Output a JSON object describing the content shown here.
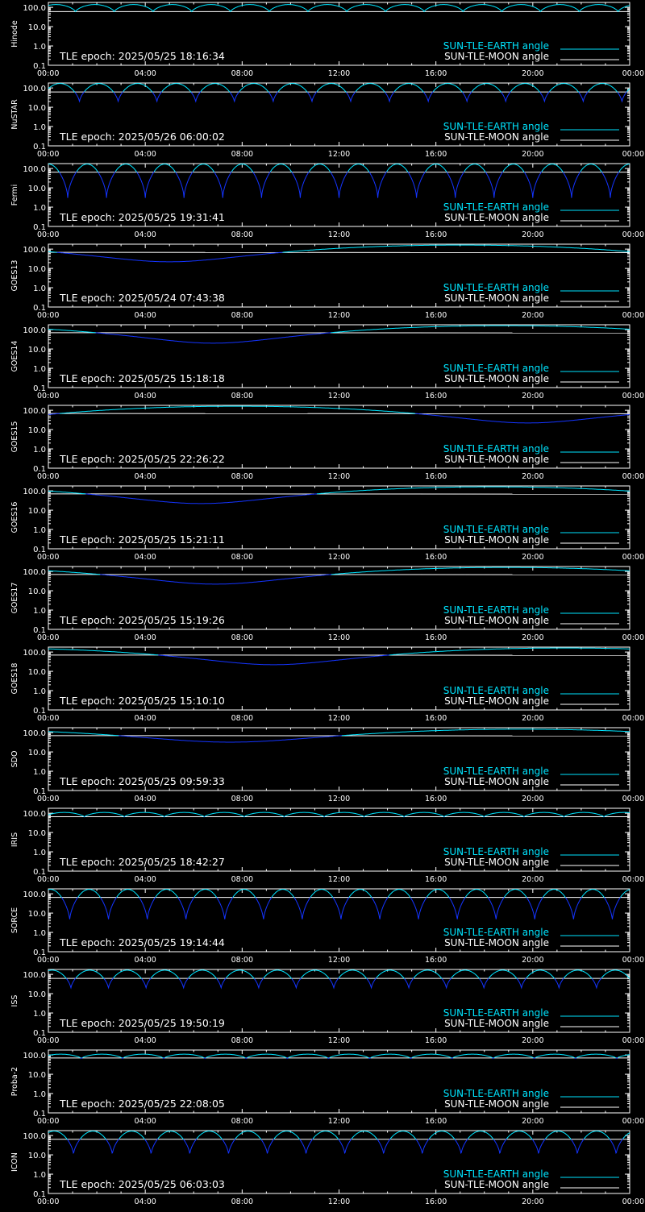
{
  "colors": {
    "background": "#000000",
    "axes": "#ffffff",
    "earth": "#00e5ff",
    "moon": "#ffffff",
    "below": "#1434ff"
  },
  "legend": {
    "earth": "SUN-TLE-EARTH angle",
    "moon": "SUN-TLE-MOON angle"
  },
  "chart_data": [
    {
      "type": "line",
      "panel_label": "Hinode",
      "tle_epoch": "TLE epoch: 2025/05/25 18:16:34",
      "x_ticks": [
        "00:00",
        "04:00",
        "08:00",
        "12:00",
        "16:00",
        "20:00",
        "00:00"
      ],
      "x_range_hours": [
        0,
        24
      ],
      "y_ticks": [
        "100.0",
        "10.0",
        "1.0",
        "0.1"
      ],
      "yscale": "log",
      "ylim": [
        0.1,
        180
      ],
      "earth_angle": {
        "model": "orbit",
        "max": 140,
        "min": 58,
        "period_hours": 1.6,
        "phase": 0.3
      },
      "moon_angle": [
        [
          0,
          60
        ],
        [
          24,
          60
        ]
      ]
    },
    {
      "type": "line",
      "panel_label": "NuSTAR",
      "tle_epoch": "TLE epoch: 2025/05/26 06:00:02",
      "x_ticks": [
        "00:00",
        "04:00",
        "08:00",
        "12:00",
        "16:00",
        "20:00",
        "00:00"
      ],
      "x_range_hours": [
        0,
        24
      ],
      "y_ticks": [
        "100.0",
        "10.0",
        "1.0",
        "0.1"
      ],
      "yscale": "log",
      "ylim": [
        0.1,
        180
      ],
      "earth_angle": {
        "model": "orbit",
        "max": 170,
        "min": 18,
        "period_hours": 1.6,
        "phase": 0.2
      },
      "moon_angle": [
        [
          0,
          62
        ],
        [
          24,
          62
        ]
      ]
    },
    {
      "type": "line",
      "panel_label": "Fermi",
      "tle_epoch": "TLE epoch: 2025/05/25 19:31:41",
      "x_ticks": [
        "00:00",
        "04:00",
        "08:00",
        "12:00",
        "16:00",
        "20:00",
        "00:00"
      ],
      "x_range_hours": [
        0,
        24
      ],
      "y_ticks": [
        "100.0",
        "10.0",
        "1.0",
        "0.1"
      ],
      "yscale": "log",
      "ylim": [
        0.1,
        180
      ],
      "earth_angle": {
        "model": "orbit",
        "max": 170,
        "min": 3,
        "period_hours": 1.6,
        "phase": 0.5
      },
      "moon_angle": [
        [
          0,
          65
        ],
        [
          24,
          65
        ]
      ]
    },
    {
      "type": "line",
      "panel_label": "GOES13",
      "tle_epoch": "TLE epoch: 2025/05/24 07:43:38",
      "x_ticks": [
        "00:00",
        "04:00",
        "08:00",
        "12:00",
        "16:00",
        "20:00",
        "00:00"
      ],
      "x_range_hours": [
        0,
        24
      ],
      "y_ticks": [
        "100.0",
        "10.0",
        "1.0",
        "0.1"
      ],
      "yscale": "log",
      "ylim": [
        0.1,
        180
      ],
      "earth_angle": {
        "model": "geo",
        "max": 162,
        "min": 22,
        "min_hour": 5.0
      },
      "moon_angle": [
        [
          0,
          68
        ],
        [
          24,
          66
        ]
      ]
    },
    {
      "type": "line",
      "panel_label": "GOES14",
      "tle_epoch": "TLE epoch: 2025/05/25 15:18:18",
      "x_ticks": [
        "00:00",
        "04:00",
        "08:00",
        "12:00",
        "16:00",
        "20:00",
        "00:00"
      ],
      "x_range_hours": [
        0,
        24
      ],
      "y_ticks": [
        "100.0",
        "10.0",
        "1.0",
        "0.1"
      ],
      "yscale": "log",
      "ylim": [
        0.1,
        180
      ],
      "earth_angle": {
        "model": "geo",
        "max": 162,
        "min": 20,
        "min_hour": 6.8
      },
      "moon_angle": [
        [
          0,
          70
        ],
        [
          24,
          68
        ]
      ]
    },
    {
      "type": "line",
      "panel_label": "GOES15",
      "tle_epoch": "TLE epoch: 2025/05/25 22:26:22",
      "x_ticks": [
        "00:00",
        "04:00",
        "08:00",
        "12:00",
        "16:00",
        "20:00",
        "00:00"
      ],
      "x_range_hours": [
        0,
        24
      ],
      "y_ticks": [
        "100.0",
        "10.0",
        "1.0",
        "0.1"
      ],
      "yscale": "log",
      "ylim": [
        0.1,
        180
      ],
      "earth_angle": {
        "model": "geo",
        "max": 162,
        "min": 22,
        "min_hour": 19.8
      },
      "moon_angle": [
        [
          0,
          68
        ],
        [
          24,
          66
        ]
      ]
    },
    {
      "type": "line",
      "panel_label": "GOES16",
      "tle_epoch": "TLE epoch: 2025/05/25 15:21:11",
      "x_ticks": [
        "00:00",
        "04:00",
        "08:00",
        "12:00",
        "16:00",
        "20:00",
        "00:00"
      ],
      "x_range_hours": [
        0,
        24
      ],
      "y_ticks": [
        "100.0",
        "10.0",
        "1.0",
        "0.1"
      ],
      "yscale": "log",
      "ylim": [
        0.1,
        180
      ],
      "earth_angle": {
        "model": "geo",
        "max": 162,
        "min": 22,
        "min_hour": 6.3
      },
      "moon_angle": [
        [
          0,
          70
        ],
        [
          24,
          68
        ]
      ]
    },
    {
      "type": "line",
      "panel_label": "GOES17",
      "tle_epoch": "TLE epoch: 2025/05/25 15:19:26",
      "x_ticks": [
        "00:00",
        "04:00",
        "08:00",
        "12:00",
        "16:00",
        "20:00",
        "00:00"
      ],
      "x_range_hours": [
        0,
        24
      ],
      "y_ticks": [
        "100.0",
        "10.0",
        "1.0",
        "0.1"
      ],
      "yscale": "log",
      "ylim": [
        0.1,
        180
      ],
      "earth_angle": {
        "model": "geo",
        "max": 162,
        "min": 22,
        "min_hour": 6.9
      },
      "moon_angle": [
        [
          0,
          70
        ],
        [
          24,
          68
        ]
      ]
    },
    {
      "type": "line",
      "panel_label": "GOES18",
      "tle_epoch": "TLE epoch: 2025/05/25 15:10:10",
      "x_ticks": [
        "00:00",
        "04:00",
        "08:00",
        "12:00",
        "16:00",
        "20:00",
        "00:00"
      ],
      "x_range_hours": [
        0,
        24
      ],
      "y_ticks": [
        "100.0",
        "10.0",
        "1.0",
        "0.1"
      ],
      "yscale": "log",
      "ylim": [
        0.1,
        180
      ],
      "earth_angle": {
        "model": "geo",
        "max": 162,
        "min": 22,
        "min_hour": 9.3
      },
      "moon_angle": [
        [
          0,
          70
        ],
        [
          24,
          68
        ]
      ]
    },
    {
      "type": "line",
      "panel_label": "SDO",
      "tle_epoch": "TLE epoch: 2025/05/25 09:59:33",
      "x_ticks": [
        "00:00",
        "04:00",
        "08:00",
        "12:00",
        "16:00",
        "20:00",
        "00:00"
      ],
      "x_range_hours": [
        0,
        24
      ],
      "y_ticks": [
        "100.0",
        "10.0",
        "1.0",
        "0.1"
      ],
      "yscale": "log",
      "ylim": [
        0.1,
        180
      ],
      "earth_angle": {
        "model": "geo",
        "max": 150,
        "min": 32,
        "min_hour": 7.5
      },
      "moon_angle": [
        [
          0,
          70
        ],
        [
          24,
          68
        ]
      ]
    },
    {
      "type": "line",
      "panel_label": "IRIS",
      "tle_epoch": "TLE epoch: 2025/05/25 18:42:27",
      "x_ticks": [
        "00:00",
        "04:00",
        "08:00",
        "12:00",
        "16:00",
        "20:00",
        "00:00"
      ],
      "x_range_hours": [
        0,
        24
      ],
      "y_ticks": [
        "100.0",
        "10.0",
        "1.0",
        "0.1"
      ],
      "yscale": "log",
      "ylim": [
        0.1,
        180
      ],
      "earth_angle": {
        "model": "orbit",
        "max": 110,
        "min": 62,
        "period_hours": 1.65,
        "phase": 0.1
      },
      "moon_angle": [
        [
          0,
          66
        ],
        [
          24,
          66
        ]
      ]
    },
    {
      "type": "line",
      "panel_label": "SORCE",
      "tle_epoch": "TLE epoch: 2025/05/25 19:14:44",
      "x_ticks": [
        "00:00",
        "04:00",
        "08:00",
        "12:00",
        "16:00",
        "20:00",
        "00:00"
      ],
      "x_range_hours": [
        0,
        24
      ],
      "y_ticks": [
        "100.0",
        "10.0",
        "1.0",
        "0.1"
      ],
      "yscale": "log",
      "ylim": [
        0.1,
        180
      ],
      "earth_angle": {
        "model": "orbit",
        "max": 170,
        "min": 4,
        "period_hours": 1.6,
        "phase": 0.45
      },
      "moon_angle": [
        [
          0,
          65
        ],
        [
          24,
          65
        ]
      ]
    },
    {
      "type": "line",
      "panel_label": "ISS",
      "tle_epoch": "TLE epoch: 2025/05/25 19:50:19",
      "x_ticks": [
        "00:00",
        "04:00",
        "08:00",
        "12:00",
        "16:00",
        "20:00",
        "00:00"
      ],
      "x_range_hours": [
        0,
        24
      ],
      "y_ticks": [
        "100.0",
        "10.0",
        "1.0",
        "0.1"
      ],
      "yscale": "log",
      "ylim": [
        0.1,
        180
      ],
      "earth_angle": {
        "model": "orbit",
        "max": 165,
        "min": 18,
        "period_hours": 1.55,
        "phase": 0.4
      },
      "moon_angle": [
        [
          0,
          62
        ],
        [
          24,
          62
        ]
      ]
    },
    {
      "type": "line",
      "panel_label": "Proba-2",
      "tle_epoch": "TLE epoch: 2025/05/25 22:08:05",
      "x_ticks": [
        "00:00",
        "04:00",
        "08:00",
        "12:00",
        "16:00",
        "20:00",
        "00:00"
      ],
      "x_range_hours": [
        0,
        24
      ],
      "y_ticks": [
        "100.0",
        "10.0",
        "1.0",
        "0.1"
      ],
      "yscale": "log",
      "ylim": [
        0.1,
        180
      ],
      "earth_angle": {
        "model": "orbit",
        "max": 110,
        "min": 64,
        "period_hours": 1.7,
        "phase": 0.2
      },
      "moon_angle": [
        [
          0,
          70
        ],
        [
          24,
          70
        ]
      ]
    },
    {
      "type": "line",
      "panel_label": "ICON",
      "tle_epoch": "TLE epoch: 2025/05/25 06:03:03",
      "x_ticks": [
        "00:00",
        "04:00",
        "08:00",
        "12:00",
        "16:00",
        "20:00",
        "00:00"
      ],
      "x_range_hours": [
        0,
        24
      ],
      "y_ticks": [
        "100.0",
        "10.0",
        "1.0",
        "0.1"
      ],
      "yscale": "log",
      "ylim": [
        0.1,
        180
      ],
      "earth_angle": {
        "model": "orbit",
        "max": 170,
        "min": 10,
        "period_hours": 1.6,
        "phase": 0.35
      },
      "moon_angle": [
        [
          0,
          64
        ],
        [
          24,
          64
        ]
      ]
    }
  ]
}
